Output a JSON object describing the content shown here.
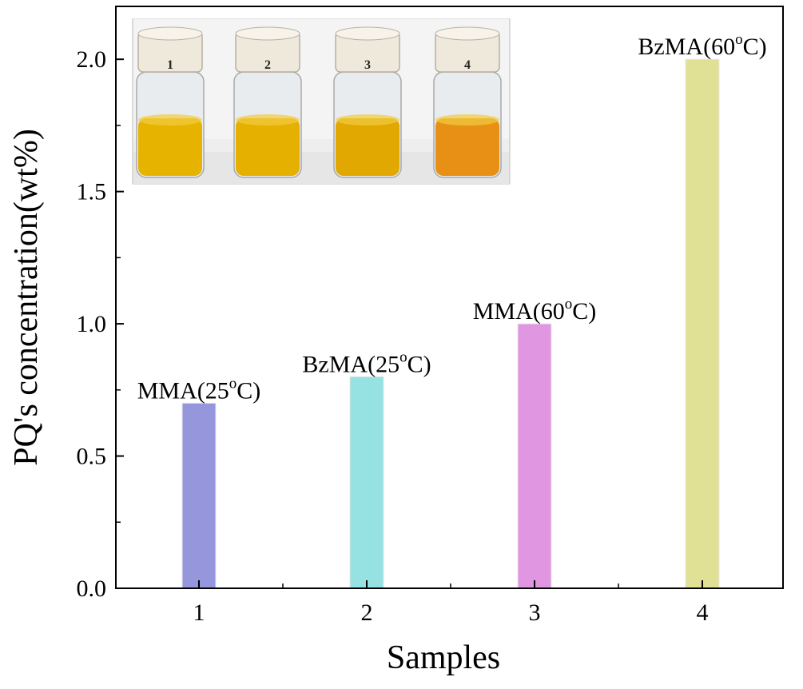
{
  "chart_data": {
    "type": "bar",
    "categories": [
      "1",
      "2",
      "3",
      "4"
    ],
    "values": [
      0.7,
      0.8,
      1.0,
      2.0
    ],
    "bar_labels": [
      {
        "main": "MMA(25",
        "sup": "o",
        "end": "C)"
      },
      {
        "main": "BzMA(25",
        "sup": "o",
        "end": "C)"
      },
      {
        "main": "MMA(60",
        "sup": "o",
        "end": "C)"
      },
      {
        "main": "BzMA(60",
        "sup": "o",
        "end": "C)"
      }
    ],
    "colors": [
      "#9696dc",
      "#96e1e1",
      "#e196e1",
      "#e1e196"
    ],
    "xlabel": "Samples",
    "ylabel": "PQ's concentration(wt%)",
    "ylim": [
      0,
      2.2
    ],
    "yticks": [
      "0.0",
      "0.5",
      "1.0",
      "1.5",
      "2.0"
    ],
    "grid": false,
    "inset": {
      "type": "photo",
      "vial_labels": [
        "1",
        "2",
        "3",
        "4"
      ],
      "liquid_colors": [
        "#e6b400",
        "#e6b000",
        "#e0a800",
        "#e89015"
      ]
    }
  }
}
